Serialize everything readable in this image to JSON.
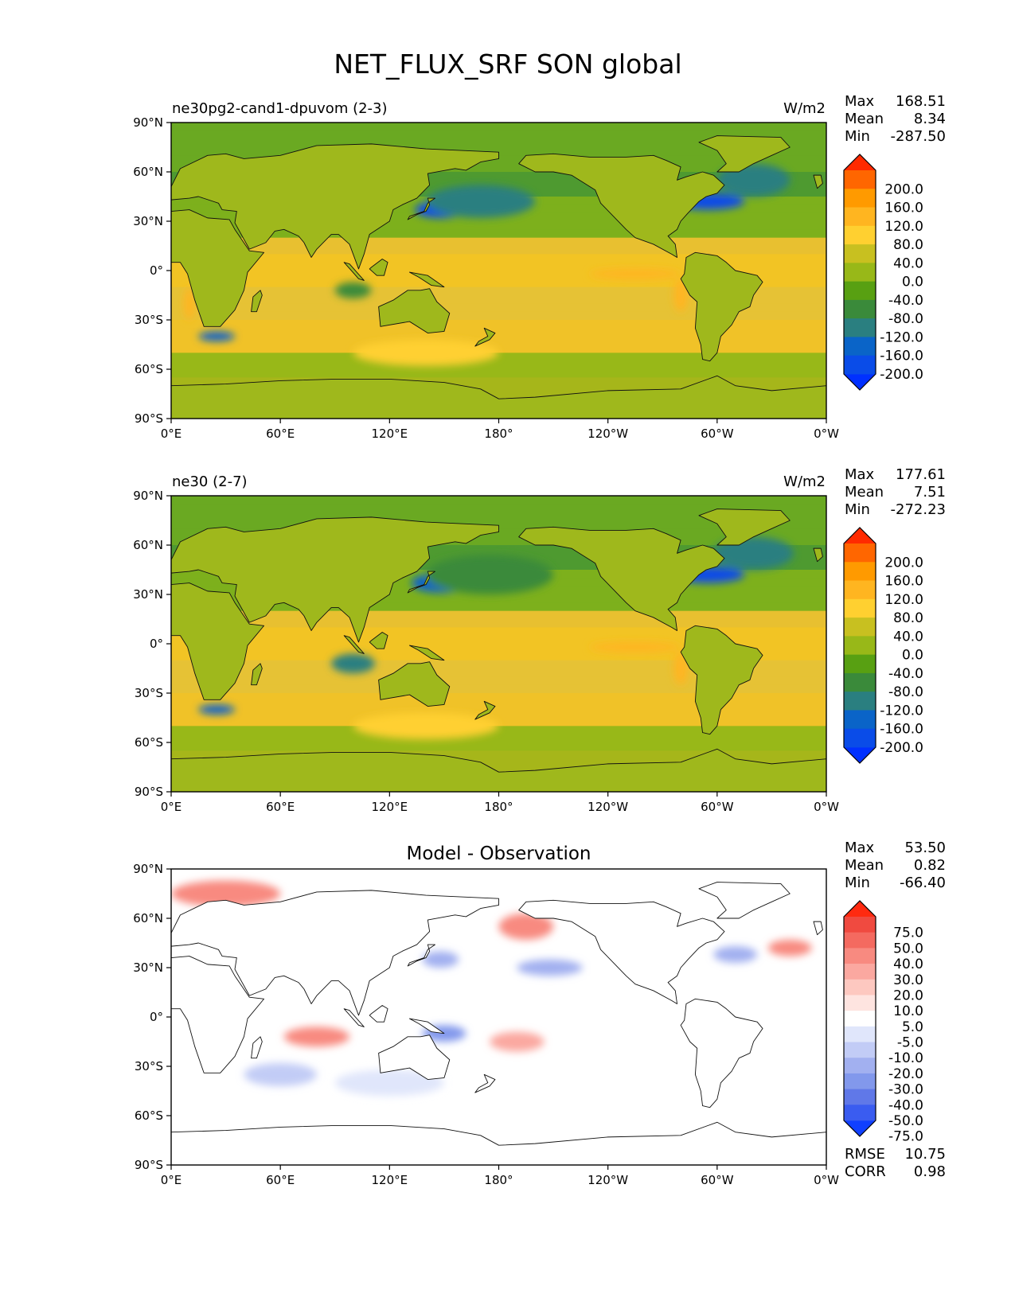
{
  "page": {
    "title": "NET_FLUX_SRF SON global"
  },
  "panels": [
    {
      "label": "ne30pg2-cand1-dpuvom (2-3)",
      "units": "W/m2",
      "center_title": "",
      "stats": [
        {
          "name": "Max",
          "value": "168.51"
        },
        {
          "name": "Mean",
          "value": "8.34"
        },
        {
          "name": "Min",
          "value": "-287.50"
        }
      ],
      "bottom_stats": [],
      "colorbar": {
        "labels": [
          "200.0",
          "160.0",
          "120.0",
          "80.0",
          "40.0",
          "0.0",
          "-40.0",
          "-80.0",
          "-120.0",
          "-160.0",
          "-200.0"
        ],
        "colors": [
          "#ff2a00",
          "#ff6600",
          "#ff9a00",
          "#ffb520",
          "#ffd030",
          "#c8c020",
          "#98b818",
          "#58a012",
          "#3a8a3a",
          "#2a7f80",
          "#0a64c8",
          "#0a4ce8",
          "#0030ff"
        ],
        "extend_top": "#ff2a00",
        "extend_bottom": "#0030ff"
      }
    },
    {
      "label": "ne30 (2-7)",
      "units": "W/m2",
      "center_title": "",
      "stats": [
        {
          "name": "Max",
          "value": "177.61"
        },
        {
          "name": "Mean",
          "value": "7.51"
        },
        {
          "name": "Min",
          "value": "-272.23"
        }
      ],
      "bottom_stats": [],
      "colorbar": {
        "labels": [
          "200.0",
          "160.0",
          "120.0",
          "80.0",
          "40.0",
          "0.0",
          "-40.0",
          "-80.0",
          "-120.0",
          "-160.0",
          "-200.0"
        ],
        "colors": [
          "#ff2a00",
          "#ff6600",
          "#ff9a00",
          "#ffb520",
          "#ffd030",
          "#c8c020",
          "#98b818",
          "#58a012",
          "#3a8a3a",
          "#2a7f80",
          "#0a64c8",
          "#0a4ce8",
          "#0030ff"
        ],
        "extend_top": "#ff2a00",
        "extend_bottom": "#0030ff"
      }
    },
    {
      "label": "",
      "units": "",
      "center_title": "Model - Observation",
      "stats": [
        {
          "name": "Max",
          "value": "53.50"
        },
        {
          "name": "Mean",
          "value": "0.82"
        },
        {
          "name": "Min",
          "value": "-66.40"
        }
      ],
      "bottom_stats": [
        {
          "name": "RMSE",
          "value": "10.75"
        },
        {
          "name": "CORR",
          "value": "0.98"
        }
      ],
      "colorbar": {
        "labels": [
          "75.0",
          "50.0",
          "40.0",
          "30.0",
          "20.0",
          "10.0",
          "5.0",
          "-5.0",
          "-10.0",
          "-20.0",
          "-30.0",
          "-40.0",
          "-50.0",
          "-75.0"
        ],
        "colors": [
          "#ff2a10",
          "#f04a40",
          "#f46a60",
          "#f88a80",
          "#fba8a0",
          "#fdc8c0",
          "#fee4e0",
          "#ffffff",
          "#e0e6fb",
          "#c2ccf6",
          "#a2b0f0",
          "#8298ec",
          "#6078e8",
          "#3a5cf0",
          "#1040ff"
        ],
        "extend_top": "#ff2a10",
        "extend_bottom": "#1040ff"
      }
    }
  ],
  "chart_data": [
    {
      "type": "heatmap",
      "title": "ne30pg2-cand1-dpuvom (2-3)",
      "units": "W/m2",
      "x_ticks": [
        "0°E",
        "60°E",
        "120°E",
        "180°",
        "120°W",
        "60°W",
        "0°W"
      ],
      "y_ticks": [
        "90°N",
        "60°N",
        "30°N",
        "0°",
        "30°S",
        "60°S",
        "90°S"
      ],
      "xlim": [
        0,
        360
      ],
      "ylim": [
        -90,
        90
      ],
      "levels": [
        -200,
        -160,
        -120,
        -80,
        -40,
        0,
        40,
        80,
        120,
        160,
        200
      ],
      "max": 168.51,
      "mean": 8.34,
      "min": -287.5,
      "features": [
        {
          "type": "blob",
          "lon": 148,
          "lat": 37,
          "rx": 14,
          "ry": 5,
          "value": -170
        },
        {
          "type": "blob",
          "lon": 170,
          "lat": 42,
          "rx": 30,
          "ry": 10,
          "value": -90
        },
        {
          "type": "blob",
          "lon": 295,
          "lat": 42,
          "rx": 20,
          "ry": 5,
          "value": -200
        },
        {
          "type": "blob",
          "lon": 320,
          "lat": 55,
          "rx": 20,
          "ry": 10,
          "value": -100
        },
        {
          "type": "blob",
          "lon": 25,
          "lat": -40,
          "rx": 10,
          "ry": 3,
          "value": -150
        },
        {
          "type": "blob",
          "lon": 255,
          "lat": -2,
          "rx": 25,
          "ry": 3,
          "value": 150
        },
        {
          "type": "blob",
          "lon": 280,
          "lat": -15,
          "rx": 4,
          "ry": 10,
          "value": 140
        },
        {
          "type": "blob",
          "lon": 10,
          "lat": -20,
          "rx": 3,
          "ry": 10,
          "value": 140
        },
        {
          "type": "blob",
          "lon": 100,
          "lat": -12,
          "rx": 10,
          "ry": 5,
          "value": -60
        },
        {
          "type": "blob",
          "lon": 140,
          "lat": -50,
          "rx": 40,
          "ry": 8,
          "value": 80
        }
      ]
    },
    {
      "type": "heatmap",
      "title": "ne30 (2-7)",
      "units": "W/m2",
      "x_ticks": [
        "0°E",
        "60°E",
        "120°E",
        "180°",
        "120°W",
        "60°W",
        "0°W"
      ],
      "y_ticks": [
        "90°N",
        "60°N",
        "30°N",
        "0°",
        "30°S",
        "60°S",
        "90°S"
      ],
      "xlim": [
        0,
        360
      ],
      "ylim": [
        -90,
        90
      ],
      "levels": [
        -200,
        -160,
        -120,
        -80,
        -40,
        0,
        40,
        80,
        120,
        160,
        200
      ],
      "max": 177.61,
      "mean": 7.51,
      "min": -272.23,
      "features": [
        {
          "type": "blob",
          "lon": 148,
          "lat": 37,
          "rx": 16,
          "ry": 6,
          "value": -150
        },
        {
          "type": "blob",
          "lon": 175,
          "lat": 42,
          "rx": 35,
          "ry": 12,
          "value": -80
        },
        {
          "type": "blob",
          "lon": 295,
          "lat": 42,
          "rx": 20,
          "ry": 5,
          "value": -200
        },
        {
          "type": "blob",
          "lon": 320,
          "lat": 55,
          "rx": 22,
          "ry": 10,
          "value": -100
        },
        {
          "type": "blob",
          "lon": 25,
          "lat": -40,
          "rx": 10,
          "ry": 3,
          "value": -150
        },
        {
          "type": "blob",
          "lon": 255,
          "lat": -2,
          "rx": 25,
          "ry": 3,
          "value": 150
        },
        {
          "type": "blob",
          "lon": 280,
          "lat": -15,
          "rx": 4,
          "ry": 10,
          "value": 140
        },
        {
          "type": "blob",
          "lon": 100,
          "lat": -12,
          "rx": 12,
          "ry": 6,
          "value": -100
        },
        {
          "type": "blob",
          "lon": 140,
          "lat": -50,
          "rx": 40,
          "ry": 8,
          "value": 80
        }
      ]
    },
    {
      "type": "heatmap",
      "title": "Model - Observation",
      "x_ticks": [
        "0°E",
        "60°E",
        "120°E",
        "180°",
        "120°W",
        "60°W",
        "0°W"
      ],
      "y_ticks": [
        "90°N",
        "60°N",
        "30°N",
        "0°",
        "30°S",
        "60°S",
        "90°S"
      ],
      "xlim": [
        0,
        360
      ],
      "ylim": [
        -90,
        90
      ],
      "levels": [
        -75,
        -50,
        -40,
        -30,
        -20,
        -10,
        -5,
        5,
        10,
        20,
        30,
        40,
        50,
        75
      ],
      "max": 53.5,
      "mean": 0.82,
      "min": -66.4,
      "rmse": 10.75,
      "corr": 0.98,
      "features": [
        {
          "type": "blob",
          "lon": 30,
          "lat": 75,
          "rx": 30,
          "ry": 8,
          "value": 35
        },
        {
          "type": "blob",
          "lon": 195,
          "lat": 55,
          "rx": 15,
          "ry": 8,
          "value": 30
        },
        {
          "type": "blob",
          "lon": 208,
          "lat": 30,
          "rx": 18,
          "ry": 5,
          "value": -30
        },
        {
          "type": "blob",
          "lon": 148,
          "lat": 35,
          "rx": 10,
          "ry": 5,
          "value": -30
        },
        {
          "type": "blob",
          "lon": 310,
          "lat": 38,
          "rx": 12,
          "ry": 5,
          "value": -30
        },
        {
          "type": "blob",
          "lon": 340,
          "lat": 42,
          "rx": 12,
          "ry": 5,
          "value": 35
        },
        {
          "type": "blob",
          "lon": 80,
          "lat": -12,
          "rx": 18,
          "ry": 6,
          "value": 30
        },
        {
          "type": "blob",
          "lon": 150,
          "lat": -10,
          "rx": 12,
          "ry": 5,
          "value": -35
        },
        {
          "type": "blob",
          "lon": 190,
          "lat": -15,
          "rx": 15,
          "ry": 6,
          "value": 25
        },
        {
          "type": "blob",
          "lon": 60,
          "lat": -35,
          "rx": 20,
          "ry": 7,
          "value": -20
        },
        {
          "type": "blob",
          "lon": 120,
          "lat": -40,
          "rx": 30,
          "ry": 8,
          "value": -10
        }
      ]
    }
  ]
}
